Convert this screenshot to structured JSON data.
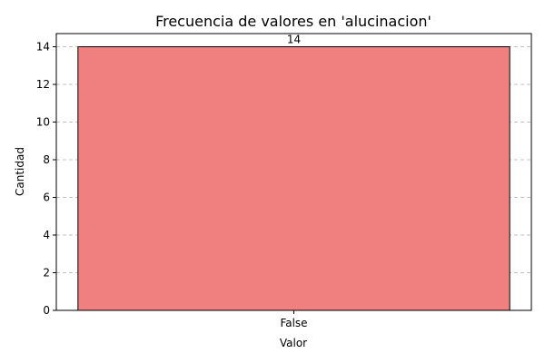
{
  "chart_data": {
    "type": "bar",
    "title": "Frecuencia de valores en 'alucinacion'",
    "xlabel": "Valor",
    "ylabel": "Cantidad",
    "categories": [
      "False"
    ],
    "values": [
      14
    ],
    "ylim": [
      0,
      14.7
    ],
    "yticks": [
      0,
      2,
      4,
      6,
      8,
      10,
      12,
      14
    ],
    "grid": "y-dashed",
    "bar_color": "#f08080",
    "bar_edge_color": "#000000",
    "data_labels": [
      "14"
    ]
  }
}
